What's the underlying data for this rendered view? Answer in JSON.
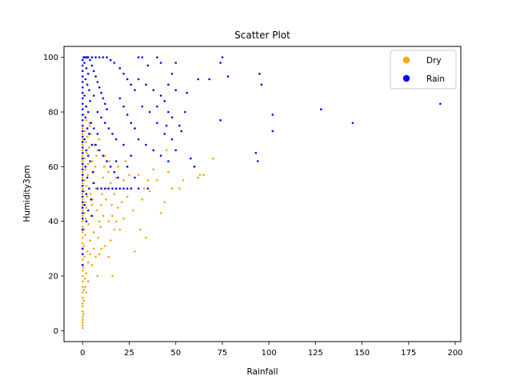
{
  "chart_data": {
    "type": "scatter",
    "title": "Scatter Plot",
    "xlabel": "Rainfall",
    "ylabel": "Humidity3pm",
    "xlim": [
      -10,
      203
    ],
    "ylim": [
      -4,
      104
    ],
    "xticks": [
      0,
      25,
      50,
      75,
      100,
      125,
      150,
      175,
      200
    ],
    "yticks": [
      0,
      20,
      40,
      60,
      80,
      100
    ],
    "grid": false,
    "legend_position": "top-right",
    "series": [
      {
        "name": "Dry",
        "color": "#ffa500",
        "points": [
          [
            0,
            1
          ],
          [
            0,
            2
          ],
          [
            0,
            3
          ],
          [
            0,
            4
          ],
          [
            0,
            5
          ],
          [
            0,
            7
          ],
          [
            0,
            9
          ],
          [
            0,
            10
          ],
          [
            0,
            12
          ],
          [
            0,
            14
          ],
          [
            0,
            16
          ],
          [
            0,
            18
          ],
          [
            0,
            20
          ],
          [
            0,
            22
          ],
          [
            0,
            24
          ],
          [
            0,
            26
          ],
          [
            0,
            28
          ],
          [
            0,
            30
          ],
          [
            0,
            32
          ],
          [
            0,
            34
          ],
          [
            0,
            36
          ],
          [
            0,
            38
          ],
          [
            0,
            40
          ],
          [
            0,
            42
          ],
          [
            0,
            44
          ],
          [
            0,
            46
          ],
          [
            0,
            48
          ],
          [
            0,
            50
          ],
          [
            0,
            52
          ],
          [
            0,
            54
          ],
          [
            0,
            56
          ],
          [
            0,
            58
          ],
          [
            0,
            60
          ],
          [
            0,
            62
          ],
          [
            0,
            64
          ],
          [
            0,
            66
          ],
          [
            0,
            68
          ],
          [
            0,
            70
          ],
          [
            0,
            72
          ],
          [
            0,
            74
          ],
          [
            0.4,
            6
          ],
          [
            0.6,
            11
          ],
          [
            0.8,
            15
          ],
          [
            1.2,
            19
          ],
          [
            0.4,
            23
          ],
          [
            1,
            27
          ],
          [
            0.6,
            31
          ],
          [
            1.4,
            35
          ],
          [
            0.8,
            37
          ],
          [
            1.6,
            41
          ],
          [
            1,
            43
          ],
          [
            2,
            45
          ],
          [
            1.4,
            47
          ],
          [
            2.4,
            49
          ],
          [
            0.8,
            51
          ],
          [
            2,
            53
          ],
          [
            1.2,
            55
          ],
          [
            2.8,
            57
          ],
          [
            1.6,
            59
          ],
          [
            3,
            61
          ],
          [
            1,
            63
          ],
          [
            2.2,
            65
          ],
          [
            3.4,
            67
          ],
          [
            1.8,
            69
          ],
          [
            2.6,
            71
          ],
          [
            1.2,
            73
          ],
          [
            3.8,
            75
          ],
          [
            2,
            77
          ],
          [
            0.6,
            79
          ],
          [
            1.6,
            82
          ],
          [
            2,
            21
          ],
          [
            3,
            25
          ],
          [
            2.6,
            29
          ],
          [
            4,
            33
          ],
          [
            3.2,
            39
          ],
          [
            4.6,
            42
          ],
          [
            5,
            46
          ],
          [
            4.2,
            50
          ],
          [
            5.6,
            54
          ],
          [
            6,
            58
          ],
          [
            6.8,
            60
          ],
          [
            5.2,
            62
          ],
          [
            7.4,
            64
          ],
          [
            8,
            66
          ],
          [
            6.4,
            68
          ],
          [
            8.8,
            70
          ],
          [
            4.4,
            72
          ],
          [
            3.6,
            76
          ],
          [
            5.4,
            48
          ],
          [
            7,
            52
          ],
          [
            7.6,
            44
          ],
          [
            9,
            40
          ],
          [
            6,
            36
          ],
          [
            8.4,
            34
          ],
          [
            9.6,
            38
          ],
          [
            10,
            46
          ],
          [
            10.4,
            50
          ],
          [
            11,
            56
          ],
          [
            11.6,
            60
          ],
          [
            12,
            64
          ],
          [
            12.6,
            48
          ],
          [
            13.2,
            52
          ],
          [
            13.8,
            58
          ],
          [
            14.4,
            62
          ],
          [
            15,
            54
          ],
          [
            15.6,
            46
          ],
          [
            16,
            42
          ],
          [
            17,
            50
          ],
          [
            18,
            56
          ],
          [
            19,
            60
          ],
          [
            20,
            52
          ],
          [
            21,
            47
          ],
          [
            22,
            55
          ],
          [
            23,
            62
          ],
          [
            24,
            49
          ],
          [
            25,
            57
          ],
          [
            26,
            52
          ],
          [
            27,
            44
          ],
          [
            28,
            29
          ],
          [
            30,
            57
          ],
          [
            31,
            37
          ],
          [
            32,
            48
          ],
          [
            33,
            52
          ],
          [
            34,
            34
          ],
          [
            35,
            55
          ],
          [
            36,
            51
          ],
          [
            38,
            59
          ],
          [
            40,
            55
          ],
          [
            42,
            43
          ],
          [
            44,
            47
          ],
          [
            45,
            66
          ],
          [
            46,
            58
          ],
          [
            48,
            52
          ],
          [
            52,
            52
          ],
          [
            54,
            55
          ],
          [
            62,
            56
          ],
          [
            63,
            57
          ],
          [
            65,
            57
          ],
          [
            70,
            63
          ],
          [
            8,
            20
          ],
          [
            5,
            24
          ],
          [
            7,
            27
          ],
          [
            10,
            30
          ],
          [
            12,
            31
          ],
          [
            14,
            27
          ],
          [
            15,
            33
          ],
          [
            16,
            20
          ],
          [
            20,
            37
          ],
          [
            14,
            40
          ],
          [
            11,
            42
          ],
          [
            6,
            30
          ],
          [
            4,
            28
          ],
          [
            3,
            18
          ],
          [
            2,
            14
          ],
          [
            1.4,
            16
          ],
          [
            9,
            28
          ],
          [
            17,
            37
          ],
          [
            19,
            45
          ],
          [
            18,
            40
          ],
          [
            22,
            41
          ]
        ]
      },
      {
        "name": "Rain",
        "color": "#0000ff",
        "points": [
          [
            0,
            99
          ],
          [
            0,
            97
          ],
          [
            0,
            95
          ],
          [
            0,
            93
          ],
          [
            0,
            91
          ],
          [
            0,
            89
          ],
          [
            0,
            87
          ],
          [
            0,
            85
          ],
          [
            0,
            83
          ],
          [
            0,
            81
          ],
          [
            0,
            79
          ],
          [
            0,
            77
          ],
          [
            0,
            75
          ],
          [
            0,
            73
          ],
          [
            0,
            71
          ],
          [
            0,
            69
          ],
          [
            0,
            67
          ],
          [
            0,
            65
          ],
          [
            0,
            63
          ],
          [
            0,
            61
          ],
          [
            0,
            59
          ],
          [
            0,
            57
          ],
          [
            0,
            55
          ],
          [
            0,
            53
          ],
          [
            0,
            51
          ],
          [
            0,
            49
          ],
          [
            0,
            47
          ],
          [
            0,
            45
          ],
          [
            0,
            43
          ],
          [
            0,
            41
          ],
          [
            0,
            37
          ],
          [
            0,
            30
          ],
          [
            0,
            28
          ],
          [
            0,
            24
          ],
          [
            0.5,
            100
          ],
          [
            1,
            100
          ],
          [
            1.5,
            100
          ],
          [
            2,
            100
          ],
          [
            2.5,
            100
          ],
          [
            3,
            100
          ],
          [
            1,
            98
          ],
          [
            2,
            96
          ],
          [
            3,
            94
          ],
          [
            1.5,
            92
          ],
          [
            2.5,
            90
          ],
          [
            3.5,
            88
          ],
          [
            1,
            86
          ],
          [
            4,
            84
          ],
          [
            2,
            82
          ],
          [
            3,
            80
          ],
          [
            1.5,
            78
          ],
          [
            4.5,
            76
          ],
          [
            2.5,
            74
          ],
          [
            3.5,
            72
          ],
          [
            1,
            70
          ],
          [
            5,
            68
          ],
          [
            2,
            66
          ],
          [
            3,
            64
          ],
          [
            4,
            62
          ],
          [
            1.5,
            60
          ],
          [
            5.5,
            58
          ],
          [
            2.5,
            56
          ],
          [
            6,
            54
          ],
          [
            3.5,
            52
          ],
          [
            2,
            50
          ],
          [
            4.5,
            48
          ],
          [
            1,
            46
          ],
          [
            3,
            44
          ],
          [
            5,
            42
          ],
          [
            2,
            40
          ],
          [
            4,
            99
          ],
          [
            5,
            97
          ],
          [
            6,
            95
          ],
          [
            7,
            93
          ],
          [
            8,
            91
          ],
          [
            9,
            89
          ],
          [
            10,
            87
          ],
          [
            11,
            85
          ],
          [
            12,
            83
          ],
          [
            13,
            81
          ],
          [
            5,
            100
          ],
          [
            7,
            100
          ],
          [
            9,
            100
          ],
          [
            11,
            100
          ],
          [
            13,
            100
          ],
          [
            15,
            99
          ],
          [
            17,
            98
          ],
          [
            6,
            86
          ],
          [
            8,
            80
          ],
          [
            10,
            78
          ],
          [
            12,
            76
          ],
          [
            14,
            74
          ],
          [
            16,
            72
          ],
          [
            18,
            70
          ],
          [
            7,
            68
          ],
          [
            9,
            66
          ],
          [
            11,
            64
          ],
          [
            13,
            62
          ],
          [
            15,
            60
          ],
          [
            17,
            58
          ],
          [
            19,
            56
          ],
          [
            8,
            52
          ],
          [
            10,
            52
          ],
          [
            12,
            52
          ],
          [
            14,
            52
          ],
          [
            16,
            52
          ],
          [
            18,
            52
          ],
          [
            20,
            52
          ],
          [
            22,
            52
          ],
          [
            24,
            52
          ],
          [
            26,
            52
          ],
          [
            30,
            52
          ],
          [
            35,
            52
          ],
          [
            6,
            74
          ],
          [
            8,
            72
          ],
          [
            20,
            96
          ],
          [
            22,
            94
          ],
          [
            24,
            92
          ],
          [
            26,
            90
          ],
          [
            28,
            88
          ],
          [
            20,
            85
          ],
          [
            22,
            82
          ],
          [
            24,
            79
          ],
          [
            26,
            76
          ],
          [
            28,
            74
          ],
          [
            30,
            100
          ],
          [
            32,
            100
          ],
          [
            35,
            97
          ],
          [
            40,
            100
          ],
          [
            42,
            98
          ],
          [
            30,
            92
          ],
          [
            34,
            90
          ],
          [
            38,
            88
          ],
          [
            42,
            86
          ],
          [
            46,
            90
          ],
          [
            48,
            94
          ],
          [
            50,
            98
          ],
          [
            44,
            84
          ],
          [
            46,
            80
          ],
          [
            50,
            88
          ],
          [
            32,
            82
          ],
          [
            36,
            80
          ],
          [
            40,
            76
          ],
          [
            44,
            72
          ],
          [
            48,
            70
          ],
          [
            52,
            75
          ],
          [
            53,
            73
          ],
          [
            56,
            87
          ],
          [
            58,
            63
          ],
          [
            60,
            60
          ],
          [
            30,
            70
          ],
          [
            34,
            68
          ],
          [
            38,
            66
          ],
          [
            42,
            64
          ],
          [
            46,
            62
          ],
          [
            50,
            66
          ],
          [
            26,
            64
          ],
          [
            22,
            68
          ],
          [
            24,
            60
          ],
          [
            28,
            56
          ],
          [
            62,
            92
          ],
          [
            68,
            92
          ],
          [
            74,
            98
          ],
          [
            75,
            100
          ],
          [
            78,
            93
          ],
          [
            74,
            77
          ],
          [
            93,
            65
          ],
          [
            94,
            62
          ],
          [
            95,
            94
          ],
          [
            96,
            90
          ],
          [
            102,
            79
          ],
          [
            102,
            73
          ],
          [
            128,
            81
          ],
          [
            145,
            76
          ],
          [
            192,
            83
          ],
          [
            40,
            82
          ],
          [
            45,
            75
          ],
          [
            48,
            78
          ],
          [
            55,
            80
          ],
          [
            18,
            62
          ]
        ]
      }
    ]
  }
}
